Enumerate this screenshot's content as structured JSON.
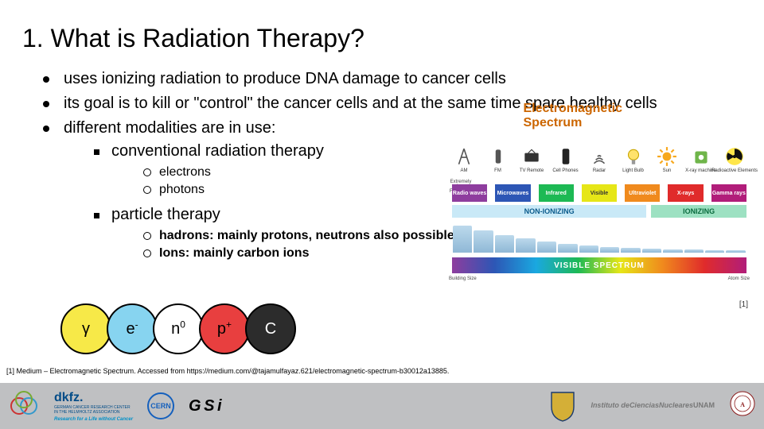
{
  "title": "1. What is Radiation Therapy?",
  "bullets": {
    "b1": "uses ionizing radiation to produce DNA damage to cancer cells",
    "b2": "its goal is to kill or \"control\" the cancer cells and at the same time spare healthy cells",
    "b3": "different modalities are in use:",
    "s1": "conventional radiation therapy",
    "s1a": "electrons",
    "s1b": "photons",
    "s2": "particle therapy",
    "s2a": "hadrons: mainly protons, neutrons also possible",
    "s2b": "Ions: mainly carbon ions"
  },
  "particles": {
    "gamma": {
      "label": "γ",
      "color": "#f7e948"
    },
    "electron": {
      "label_base": "e",
      "label_sup": "-",
      "color": "#87d4f0"
    },
    "neutron": {
      "label_base": "n",
      "label_sup": "0",
      "color": "#ffffff"
    },
    "proton": {
      "label_base": "p",
      "label_sup": "+",
      "color": "#e83f3f"
    },
    "carbon": {
      "label": "C",
      "color": "#2c2c2c",
      "text": "#ffffff"
    }
  },
  "spectrum": {
    "title": "Electromagnetic Spectrum",
    "sources": [
      {
        "label": "AM",
        "color": "#777"
      },
      {
        "label": "FM",
        "color": "#777"
      },
      {
        "label": "TV Remote",
        "color": "#555"
      },
      {
        "label": "Cell Phones",
        "color": "#333"
      },
      {
        "label": "Radar",
        "color": "#666"
      },
      {
        "label": "Light Bulb",
        "color": "#e6c700"
      },
      {
        "label": "Sun",
        "color": "#f08a1d"
      },
      {
        "label": "X-ray machine",
        "color": "#6fb54a"
      },
      {
        "label": "Radioactive Elements",
        "color": "#e6e617"
      }
    ],
    "bands": [
      {
        "label": "Radio waves",
        "color": "#8e3d9e"
      },
      {
        "label": "Microwaves",
        "color": "#2d56b5"
      },
      {
        "label": "Infrared",
        "color": "#1db954"
      },
      {
        "label": "Visible",
        "color": "#e6e617",
        "text": "#333"
      },
      {
        "label": "Ultraviolet",
        "color": "#f08a1d"
      },
      {
        "label": "X-rays",
        "color": "#e02b2b"
      },
      {
        "label": "Gamma rays",
        "color": "#b11d7a"
      }
    ],
    "left_tag": "Extremely Low Frequency",
    "ion_left": "NON-IONIZING",
    "ion_right": "IONIZING",
    "visible_bar": "VISIBLE SPECTRUM",
    "size_left": "Building Size",
    "size_right": "Atom Size",
    "building_heights": [
      34,
      28,
      22,
      18,
      14,
      11,
      9,
      7,
      6,
      5,
      4,
      4,
      3,
      3
    ]
  },
  "ref_tag": "[1]",
  "citation": "[1] Medium – Electromagnetic Spectrum. Accessed from https://medium.com/@tajamulfayaz.621/electromagnetic-spectrum-b30012a13885.",
  "footer": {
    "dkfz": "dkfz.",
    "dkfz_sub1": "GERMAN CANCER RESEARCH CENTER",
    "dkfz_sub2": "IN THE HELMHOLTZ ASSOCIATION",
    "dkfz_tag": "Research for a Life without Cancer",
    "cern": "CERN",
    "gsi": "G S i",
    "unam_l1": "Instituto de",
    "unam_l2": "Ciencias",
    "unam_l3": "Nucleares",
    "unam_l4": "UNAM"
  }
}
